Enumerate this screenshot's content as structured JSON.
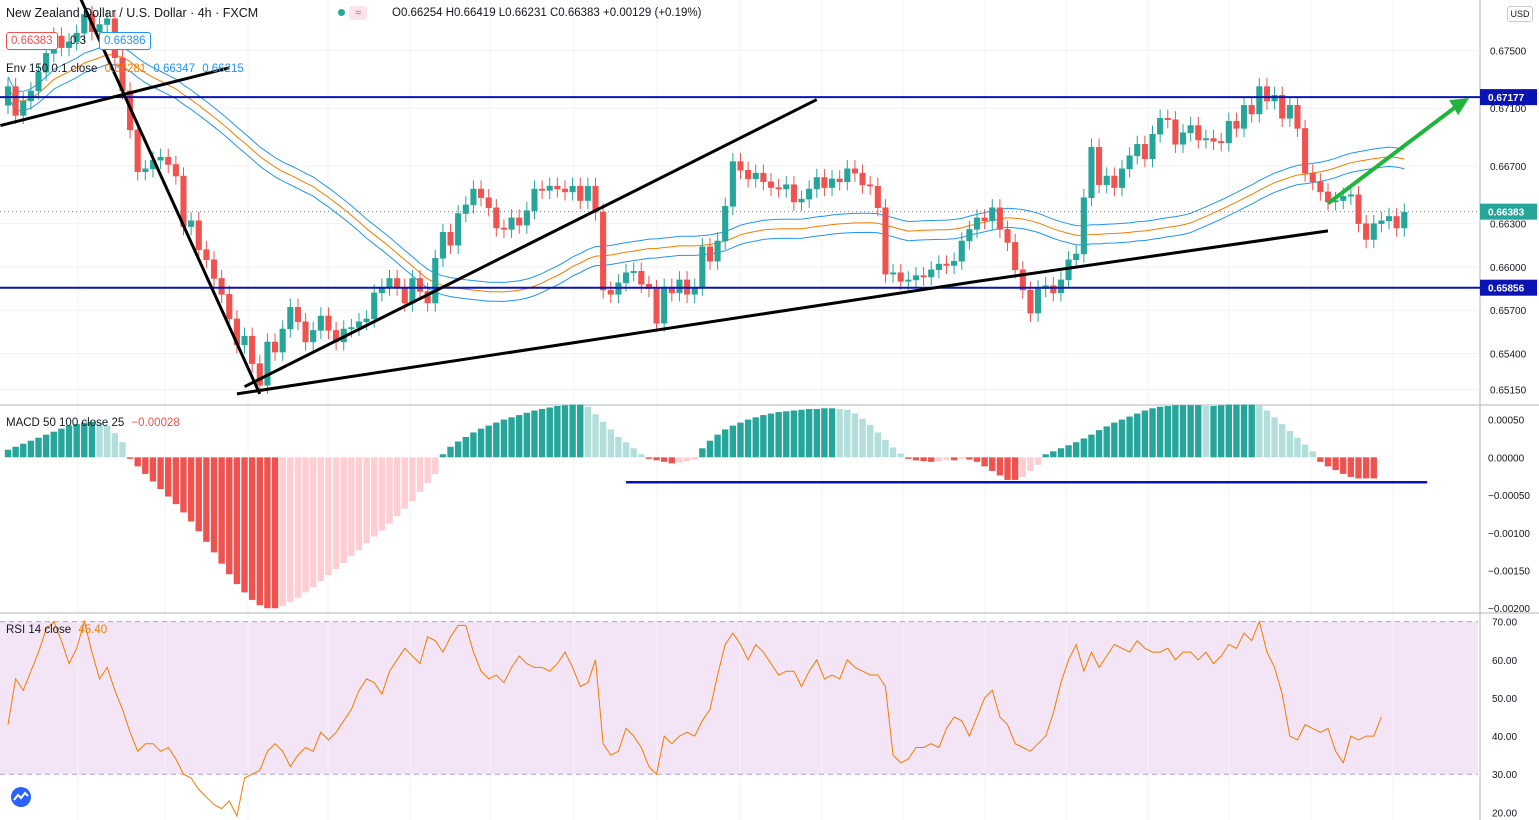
{
  "header": {
    "symbol": "New Zealand Dollar / U.S. Dollar · 4h · FXCM",
    "ohlc": "O0.66254 H0.66419 L0.66231 C0.66383 +0.00129 (+0.19%)",
    "bid": "0.66383",
    "spread": "0.3",
    "ask": "0.66386",
    "env_label": "Env 150 0.1 close",
    "env_values": [
      "0.66281",
      "0.66347",
      "0.66215"
    ],
    "currency": "USD"
  },
  "colors": {
    "up": "#26a69a",
    "down": "#ef5350",
    "macd_up_strong": "#26a69a",
    "macd_up_weak": "#b2dfdb",
    "macd_down_strong": "#ef5350",
    "macd_down_weak": "#ffcdd2",
    "env_basis": "#f57c00",
    "env_band": "#2196f3",
    "hline": "#0a14b4",
    "trend": "#000000",
    "arrow": "#1fb53b",
    "rsi_line": "#f57c00",
    "rsi_bg": "#f3e5f5"
  },
  "chart_data": [
    {
      "type": "candlestick",
      "title": "New Zealand Dollar / U.S. Dollar · 4h · FXCM",
      "ylim": [
        0.6505,
        0.6785
      ],
      "y_ticks": [
        "0.67500",
        "0.67100",
        "0.66700",
        "0.66300",
        "0.66000",
        "0.65700",
        "0.65400",
        "0.65150"
      ],
      "price_labels": [
        {
          "value": 0.67177,
          "label": "0.67177",
          "style": "line"
        },
        {
          "value": 0.66383,
          "label": "0.66383",
          "style": "last"
        },
        {
          "value": 0.65856,
          "label": "0.65856",
          "style": "line"
        }
      ],
      "closes": [
        0.6725,
        0.6705,
        0.6715,
        0.6722,
        0.6735,
        0.6748,
        0.676,
        0.6752,
        0.6756,
        0.6762,
        0.6775,
        0.6763,
        0.6768,
        0.6772,
        0.6745,
        0.6722,
        0.6695,
        0.6666,
        0.6668,
        0.6674,
        0.6676,
        0.6671,
        0.6663,
        0.6628,
        0.6632,
        0.6612,
        0.6605,
        0.6592,
        0.6581,
        0.6564,
        0.6546,
        0.6552,
        0.6533,
        0.6518,
        0.6548,
        0.6541,
        0.6557,
        0.6572,
        0.6562,
        0.6548,
        0.6556,
        0.6566,
        0.6556,
        0.6548,
        0.6557,
        0.6558,
        0.6562,
        0.6564,
        0.6582,
        0.6586,
        0.6592,
        0.6586,
        0.6575,
        0.6592,
        0.6583,
        0.6575,
        0.6606,
        0.6624,
        0.6615,
        0.6637,
        0.6643,
        0.6654,
        0.6648,
        0.6641,
        0.6627,
        0.6626,
        0.6634,
        0.6629,
        0.6639,
        0.6654,
        0.6653,
        0.6656,
        0.6654,
        0.6652,
        0.6656,
        0.6646,
        0.6656,
        0.6638,
        0.6584,
        0.6581,
        0.6589,
        0.6596,
        0.6597,
        0.6588,
        0.6585,
        0.6561,
        0.6586,
        0.6582,
        0.6591,
        0.6581,
        0.6586,
        0.6614,
        0.6604,
        0.6618,
        0.6642,
        0.6673,
        0.6667,
        0.6661,
        0.6665,
        0.6659,
        0.6655,
        0.6654,
        0.6657,
        0.6645,
        0.6647,
        0.6654,
        0.6662,
        0.6655,
        0.6661,
        0.6659,
        0.6668,
        0.6665,
        0.6657,
        0.6656,
        0.6641,
        0.6595,
        0.6596,
        0.659,
        0.6591,
        0.6594,
        0.6593,
        0.6598,
        0.6602,
        0.6601,
        0.6604,
        0.6618,
        0.6626,
        0.6634,
        0.6632,
        0.6641,
        0.6626,
        0.6617,
        0.6598,
        0.6584,
        0.6568,
        0.6585,
        0.6587,
        0.6582,
        0.6591,
        0.6605,
        0.6609,
        0.6648,
        0.6683,
        0.6657,
        0.6663,
        0.6655,
        0.6668,
        0.6677,
        0.6685,
        0.6675,
        0.6692,
        0.6703,
        0.6702,
        0.6685,
        0.6693,
        0.6698,
        0.6688,
        0.6689,
        0.6687,
        0.6686,
        0.6701,
        0.6696,
        0.6712,
        0.6706,
        0.6725,
        0.6715,
        0.6719,
        0.6703,
        0.6712,
        0.6696,
        0.6665,
        0.6659,
        0.6652,
        0.6645,
        0.6646,
        0.6649,
        0.665,
        0.663,
        0.6619,
        0.663,
        0.6632,
        0.6635,
        0.6627,
        0.6638
      ],
      "opens": [
        0.6712,
        0.6725,
        0.6705,
        0.6715,
        0.6722,
        0.6735,
        0.6748,
        0.676,
        0.6752,
        0.6756,
        0.6762,
        0.6775,
        0.6763,
        0.6768,
        0.6772,
        0.6745,
        0.6722,
        0.6695,
        0.6666,
        0.6668,
        0.6674,
        0.6676,
        0.6671,
        0.6663,
        0.6628,
        0.6632,
        0.6612,
        0.6605,
        0.6592,
        0.6581,
        0.6564,
        0.6546,
        0.6552,
        0.6533,
        0.6518,
        0.6548,
        0.6541,
        0.6557,
        0.6572,
        0.6562,
        0.6548,
        0.6556,
        0.6566,
        0.6556,
        0.6548,
        0.6557,
        0.6558,
        0.6562,
        0.6564,
        0.6582,
        0.6586,
        0.6592,
        0.6586,
        0.6575,
        0.6592,
        0.6583,
        0.6575,
        0.6606,
        0.6624,
        0.6615,
        0.6637,
        0.6643,
        0.6654,
        0.6648,
        0.6641,
        0.6627,
        0.6626,
        0.6634,
        0.6629,
        0.6639,
        0.6654,
        0.6653,
        0.6656,
        0.6654,
        0.6652,
        0.6656,
        0.6646,
        0.6656,
        0.6638,
        0.6584,
        0.6581,
        0.6589,
        0.6596,
        0.6597,
        0.6588,
        0.6585,
        0.6561,
        0.6586,
        0.6582,
        0.6591,
        0.6581,
        0.6586,
        0.6614,
        0.6604,
        0.6618,
        0.6642,
        0.6673,
        0.6667,
        0.6661,
        0.6665,
        0.6659,
        0.6655,
        0.6654,
        0.6657,
        0.6645,
        0.6647,
        0.6654,
        0.6662,
        0.6655,
        0.6661,
        0.6659,
        0.6668,
        0.6665,
        0.6657,
        0.6656,
        0.6641,
        0.6595,
        0.6596,
        0.659,
        0.6591,
        0.6594,
        0.6593,
        0.6598,
        0.6602,
        0.6601,
        0.6604,
        0.6618,
        0.6626,
        0.6634,
        0.6632,
        0.6641,
        0.6626,
        0.6617,
        0.6598,
        0.6584,
        0.6568,
        0.6585,
        0.6587,
        0.6582,
        0.6591,
        0.6605,
        0.6609,
        0.6648,
        0.6683,
        0.6657,
        0.6663,
        0.6655,
        0.6668,
        0.6677,
        0.6685,
        0.6675,
        0.6692,
        0.6703,
        0.6702,
        0.6685,
        0.6693,
        0.6698,
        0.6688,
        0.6689,
        0.6687,
        0.6686,
        0.6701,
        0.6696,
        0.6712,
        0.6706,
        0.6725,
        0.6715,
        0.6719,
        0.6703,
        0.6712,
        0.6696,
        0.6665,
        0.6659,
        0.6652,
        0.6645,
        0.6646,
        0.6649,
        0.665,
        0.663,
        0.6619,
        0.663,
        0.6632,
        0.6635,
        0.6627
      ]
    },
    {
      "type": "bar",
      "title": "MACD 50 100 close 25",
      "value_label": "−0.00028",
      "ylim": [
        -0.00205,
        0.00068
      ],
      "y_ticks": [
        "0.00050",
        "0.00000",
        "−0.00050",
        "−0.00100",
        "−0.00150",
        "−0.00200"
      ],
      "values": [
        0.0001,
        0.00014,
        0.00018,
        0.00022,
        0.00026,
        0.0003,
        0.00034,
        0.00038,
        0.00042,
        0.00044,
        0.00046,
        0.00047,
        0.00046,
        0.00042,
        0.00032,
        0.0002,
        -2e-05,
        -0.00012,
        -0.00022,
        -0.00032,
        -0.00042,
        -0.00052,
        -0.00062,
        -0.00073,
        -0.00085,
        -0.00098,
        -0.00112,
        -0.00126,
        -0.00141,
        -0.00155,
        -0.00168,
        -0.00179,
        -0.00189,
        -0.00196,
        -0.002,
        -0.002,
        -0.00197,
        -0.00192,
        -0.00186,
        -0.00179,
        -0.00172,
        -0.00164,
        -0.00156,
        -0.00148,
        -0.0014,
        -0.00131,
        -0.00123,
        -0.00114,
        -0.00105,
        -0.00097,
        -0.00088,
        -0.00078,
        -0.00068,
        -0.00058,
        -0.00046,
        -0.00034,
        -0.00022,
        4e-05,
        0.00014,
        0.00021,
        0.00027,
        0.00033,
        0.00038,
        0.00042,
        0.00046,
        0.0005,
        0.00053,
        0.00056,
        0.00059,
        0.00062,
        0.00064,
        0.00066,
        0.00068,
        0.00069,
        0.0007,
        0.0007,
        0.00067,
        0.00057,
        0.00047,
        0.00037,
        0.00027,
        0.0002,
        0.00012,
        4e-05,
        -2e-05,
        -4e-05,
        -6e-05,
        -8e-05,
        -7e-05,
        -5e-05,
        -3e-05,
        0.00012,
        0.00022,
        0.0003,
        0.00037,
        0.00042,
        0.00046,
        0.0005,
        0.00053,
        0.00056,
        0.00058,
        0.0006,
        0.00061,
        0.00062,
        0.00063,
        0.00064,
        0.00064,
        0.00065,
        0.00065,
        0.00064,
        0.00063,
        0.00058,
        0.00051,
        0.00043,
        0.00033,
        0.00023,
        0.00013,
        5e-05,
        -2e-05,
        -4e-05,
        -5e-05,
        -6e-05,
        -5e-05,
        -4e-05,
        -4e-05,
        -2e-05,
        -3e-05,
        -6e-05,
        -0.00012,
        -0.00018,
        -0.00024,
        -0.0003,
        -0.0003,
        -0.00026,
        -0.00018,
        -0.0001,
        4e-05,
        8e-05,
        0.00012,
        0.00016,
        0.0002,
        0.00025,
        0.0003,
        0.00036,
        0.00041,
        0.00046,
        0.0005,
        0.00054,
        0.00058,
        0.00062,
        0.00065,
        0.00067,
        0.00068,
        0.00069,
        0.00069,
        0.00069,
        0.00069,
        0.00068,
        0.00068,
        0.00069,
        0.0007,
        0.0007,
        0.0007,
        0.0007,
        0.00069,
        0.00062,
        0.00053,
        0.00044,
        0.00035,
        0.00026,
        0.00017,
        8e-05,
        -6e-05,
        -0.00012,
        -0.00017,
        -0.00022,
        -0.00026,
        -0.00028,
        -0.00028,
        -0.00028
      ]
    },
    {
      "type": "line",
      "title": "RSI 14 close",
      "value_label": "45.40",
      "ylim": [
        18,
        72
      ],
      "band": [
        30,
        70
      ],
      "y_ticks": [
        "70.00",
        "60.00",
        "50.00",
        "40.00",
        "30.00",
        "20.00"
      ],
      "values": [
        43,
        55,
        52,
        57,
        62,
        68,
        70,
        65,
        59,
        63,
        70,
        62,
        55,
        58,
        52,
        47,
        41,
        36,
        38,
        38,
        36,
        37,
        34,
        30,
        29,
        26,
        24,
        22,
        21,
        23,
        19,
        29,
        30,
        31,
        36,
        38,
        36,
        32,
        35,
        37,
        36,
        41,
        39,
        41,
        44,
        47,
        52,
        55,
        54,
        51,
        57,
        60,
        63,
        61,
        59,
        66,
        65,
        62,
        66,
        69,
        69,
        62,
        57,
        55,
        56,
        54,
        58,
        61,
        59,
        58,
        58,
        57,
        59,
        62,
        58,
        53,
        54,
        60,
        38,
        35,
        36,
        42,
        40,
        37,
        32,
        30,
        40,
        38,
        40,
        41,
        40,
        44,
        47,
        56,
        64,
        67,
        64,
        60,
        64,
        62,
        59,
        56,
        57,
        57,
        53,
        57,
        60,
        55,
        56,
        55,
        60,
        58,
        57,
        56,
        56,
        53,
        35,
        33,
        34,
        37,
        37,
        38,
        37,
        42,
        45,
        44,
        40,
        45,
        50,
        52,
        45,
        43,
        38,
        37,
        36,
        38,
        40,
        46,
        54,
        60,
        64,
        57,
        62,
        58,
        61,
        64,
        63,
        62,
        65,
        63,
        62,
        62,
        63,
        60,
        62,
        62,
        60,
        62,
        59,
        61,
        64,
        63,
        67,
        65,
        70,
        62,
        58,
        51,
        40,
        39,
        43,
        42,
        41,
        42,
        36,
        33,
        40,
        39,
        40,
        40,
        45
      ]
    }
  ]
}
